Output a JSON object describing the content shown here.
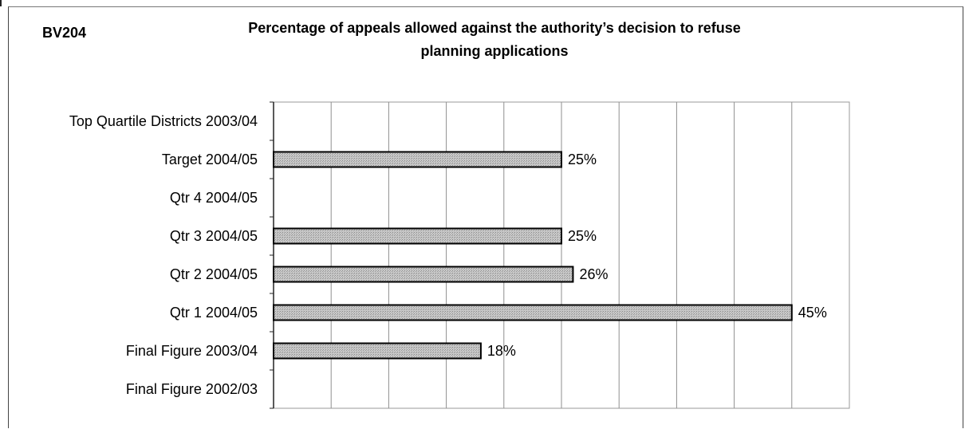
{
  "header": {
    "code": "BV204",
    "title_line1": "Percentage of appeals allowed against the authority’s decision to refuse",
    "title_line2": "planning applications"
  },
  "chart_data": {
    "type": "bar",
    "orientation": "horizontal",
    "title": "Percentage of appeals allowed against the authority’s decision to refuse planning applications",
    "categories": [
      "Top Quartile Districts 2003/04",
      "Target 2004/05",
      "Qtr 4 2004/05",
      "Qtr 3 2004/05",
      "Qtr 2 2004/05",
      "Qtr 1 2004/05",
      "Final Figure 2003/04",
      "Final Figure 2002/03"
    ],
    "values": [
      null,
      25,
      null,
      25,
      26,
      45,
      18,
      null
    ],
    "value_labels": [
      "",
      "25%",
      "",
      "25%",
      "26%",
      "45%",
      "18%",
      ""
    ],
    "xlim": [
      0,
      50
    ],
    "grid": true,
    "legend": "none",
    "bar_color": "#b8b8b8",
    "bar_edge_color": "#000000"
  }
}
